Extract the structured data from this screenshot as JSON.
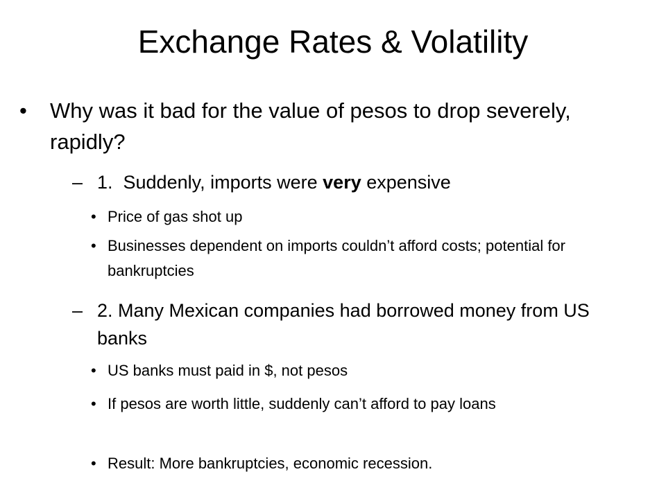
{
  "title": "Exchange Rates & Volatility",
  "items": [
    {
      "level": 1,
      "bullet": "•",
      "text": "Why was it bad for the value of pesos to drop severely, rapidly?"
    },
    {
      "level": 2,
      "bullet": "–",
      "parts": [
        "1.  Suddenly, imports were ",
        "very",
        " expensive"
      ]
    },
    {
      "level": 3,
      "bullet": "•",
      "text": "Price of gas shot up"
    },
    {
      "level": 3,
      "bullet": "•",
      "text": "Businesses dependent on imports couldn’t afford costs; potential for bankruptcies"
    },
    {
      "level": 2,
      "bullet": "–",
      "text": "2.  Many Mexican companies had borrowed money from US banks"
    },
    {
      "level": 3,
      "bullet": "•",
      "text": "US banks must paid in $, not pesos"
    },
    {
      "level": 3,
      "bullet": "•",
      "text": "If pesos are worth little, suddenly can’t afford to pay loans"
    },
    {
      "level": 3,
      "bullet": "•",
      "text": "Result: More bankruptcies, economic recession."
    }
  ]
}
